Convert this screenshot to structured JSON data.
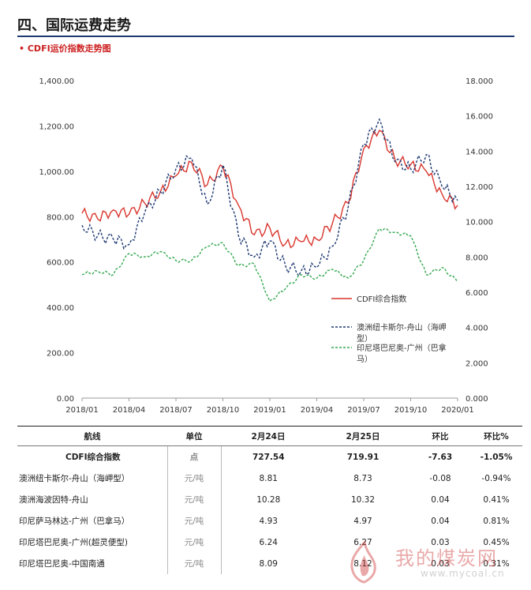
{
  "header": {
    "title": "四、国际运费走势",
    "subtitle": "• CDFI运价指数走势图"
  },
  "chart_data": {
    "type": "line",
    "title": "CDFI运价指数走势图",
    "x_ticks": [
      "2018/01",
      "2018/04",
      "2018/07",
      "2018/10",
      "2019/01",
      "2019/04",
      "2019/07",
      "2019/10",
      "2020/01"
    ],
    "x_range": [
      "2018/01",
      "2020/01"
    ],
    "y_left": {
      "min": 0,
      "max": 1400,
      "ticks": [
        "0.00",
        "200.00",
        "400.00",
        "600.00",
        "800.00",
        "1,000.00",
        "1,200.00",
        "1,400.00"
      ]
    },
    "y_right": {
      "min": 0,
      "max": 18,
      "ticks": [
        "0.000",
        "2.000",
        "4.000",
        "6.000",
        "8.000",
        "10.000",
        "12.000",
        "14.000",
        "16.000",
        "18.000"
      ]
    },
    "legend_position": "right-middle",
    "series": [
      {
        "name": "CDFI综合指数",
        "axis": "left",
        "color": "#d9362e",
        "style": "solid",
        "points": [
          [
            "2018/01",
            815
          ],
          [
            "2018/02",
            790
          ],
          [
            "2018/03",
            830
          ],
          [
            "2018/04",
            810
          ],
          [
            "2018/05",
            860
          ],
          [
            "2018/06",
            910
          ],
          [
            "2018/07",
            980
          ],
          [
            "2018/08",
            1040
          ],
          [
            "2018/09",
            940
          ],
          [
            "2018/10",
            1020
          ],
          [
            "2018/11",
            850
          ],
          [
            "2018/12",
            720
          ],
          [
            "2019/01",
            750
          ],
          [
            "2019/02",
            680
          ],
          [
            "2019/03",
            690
          ],
          [
            "2019/04",
            700
          ],
          [
            "2019/05",
            770
          ],
          [
            "2019/06",
            860
          ],
          [
            "2019/07",
            1100
          ],
          [
            "2019/08",
            1180
          ],
          [
            "2019/09",
            1050
          ],
          [
            "2019/10",
            1030
          ],
          [
            "2019/11",
            1000
          ],
          [
            "2019/12",
            900
          ],
          [
            "2020/01",
            850
          ]
        ]
      },
      {
        "name": "澳洲纽卡斯尔-舟山（海岬型）",
        "axis": "right",
        "color": "#1f3a73",
        "style": "dashed",
        "points": [
          [
            "2018/01",
            9.8
          ],
          [
            "2018/02",
            9.2
          ],
          [
            "2018/03",
            9.0
          ],
          [
            "2018/04",
            8.7
          ],
          [
            "2018/05",
            10.5
          ],
          [
            "2018/06",
            11.7
          ],
          [
            "2018/07",
            13.0
          ],
          [
            "2018/08",
            13.6
          ],
          [
            "2018/09",
            11.0
          ],
          [
            "2018/10",
            13.2
          ],
          [
            "2018/11",
            9.2
          ],
          [
            "2018/12",
            8.0
          ],
          [
            "2019/01",
            8.9
          ],
          [
            "2019/02",
            7.5
          ],
          [
            "2019/03",
            7.2
          ],
          [
            "2019/04",
            7.4
          ],
          [
            "2019/05",
            8.6
          ],
          [
            "2019/06",
            10.8
          ],
          [
            "2019/07",
            14.4
          ],
          [
            "2019/08",
            15.8
          ],
          [
            "2019/09",
            13.4
          ],
          [
            "2019/10",
            13.0
          ],
          [
            "2019/11",
            13.8
          ],
          [
            "2019/12",
            12.0
          ],
          [
            "2020/01",
            11.2
          ]
        ]
      },
      {
        "name": "印尼塔巴尼奥-广州（巴拿马）",
        "axis": "right",
        "color": "#36a852",
        "style": "dashed",
        "points": [
          [
            "2018/01",
            7.0
          ],
          [
            "2018/02",
            7.2
          ],
          [
            "2018/03",
            7.0
          ],
          [
            "2018/04",
            8.2
          ],
          [
            "2018/05",
            8.0
          ],
          [
            "2018/06",
            8.3
          ],
          [
            "2018/07",
            7.8
          ],
          [
            "2018/08",
            7.8
          ],
          [
            "2018/09",
            8.6
          ],
          [
            "2018/10",
            8.8
          ],
          [
            "2018/11",
            7.5
          ],
          [
            "2018/12",
            7.6
          ],
          [
            "2019/01",
            5.5
          ],
          [
            "2019/02",
            6.2
          ],
          [
            "2019/03",
            7.0
          ],
          [
            "2019/04",
            6.8
          ],
          [
            "2019/05",
            7.3
          ],
          [
            "2019/06",
            6.8
          ],
          [
            "2019/07",
            7.8
          ],
          [
            "2019/08",
            9.6
          ],
          [
            "2019/09",
            9.4
          ],
          [
            "2019/10",
            9.2
          ],
          [
            "2019/11",
            7.0
          ],
          [
            "2019/12",
            7.4
          ],
          [
            "2020/01",
            6.6
          ]
        ]
      }
    ]
  },
  "table": {
    "headers": [
      "航线",
      "单位",
      "2月24日",
      "2月25日",
      "环比",
      "环比%"
    ],
    "rows": [
      [
        "CDFI综合指数",
        "点",
        "727.54",
        "719.91",
        "-7.63",
        "-1.05%"
      ],
      [
        "澳洲纽卡斯尔-舟山（海岬型）",
        "元/吨",
        "8.81",
        "8.73",
        "-0.08",
        "-0.94%"
      ],
      [
        "澳洲海波因特-舟山",
        "元/吨",
        "10.28",
        "10.32",
        "0.04",
        "0.41%"
      ],
      [
        "印尼萨马林达-广州（巴拿马）",
        "元/吨",
        "4.93",
        "4.97",
        "0.04",
        "0.81%"
      ],
      [
        "印尼塔巴尼奥-广州(超灵便型)",
        "元/吨",
        "6.24",
        "6.27",
        "0.03",
        "0.45%"
      ],
      [
        "印尼塔巴尼奥-中国南通",
        "元/吨",
        "8.09",
        "8.12",
        "0.03",
        "0.31%"
      ]
    ]
  },
  "watermark": {
    "text": "我的煤炭网",
    "url": "www.mycoal.cn",
    "icon": "flame-logo-icon",
    "color": "#d04040"
  }
}
